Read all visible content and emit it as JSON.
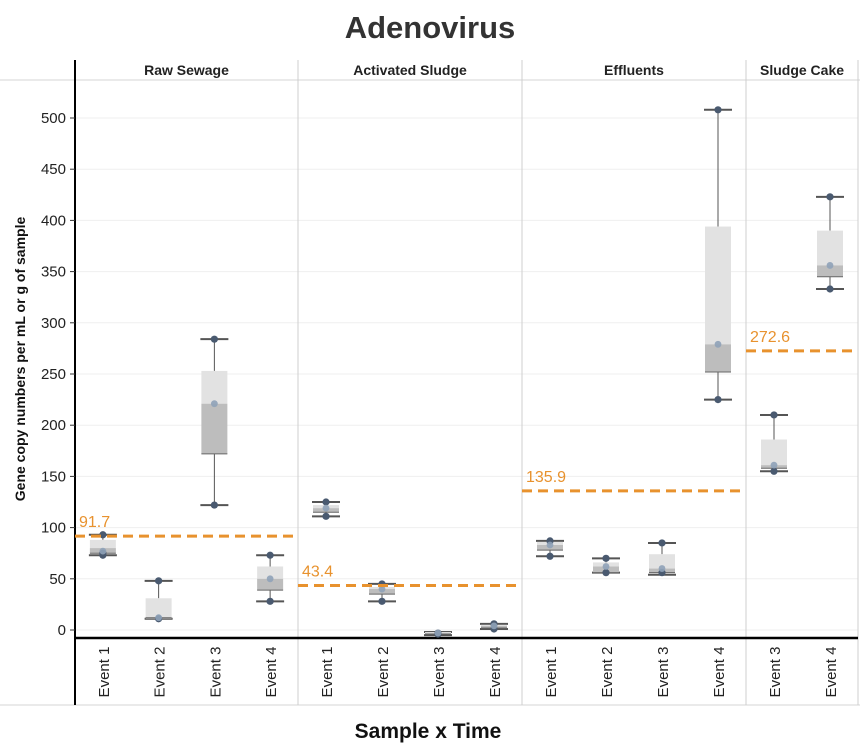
{
  "chart_data": {
    "type": "box",
    "title": "Adenovirus",
    "xlabel": "Sample x Time",
    "ylabel": "Gene copy numbers per mL or g of sample",
    "ylim": [
      -10,
      535
    ],
    "yticks": [
      0,
      50,
      100,
      150,
      200,
      250,
      300,
      350,
      400,
      450,
      500
    ],
    "grid": true,
    "colors": {
      "box_upper": "#e2e2e2",
      "box_lower": "#bdbdbd",
      "whisker": "#555555",
      "point": "#4a5a70",
      "mean_point": "#8fa2b8",
      "reference_line": "#e8922e"
    },
    "panels": [
      {
        "name": "Raw Sewage",
        "reference_value": 91.7,
        "reference_label": "91.7",
        "events": [
          {
            "label": "Event 1",
            "min": 73,
            "q1": 75,
            "median": 80,
            "q3": 88,
            "max": 93,
            "points": [
              73,
              75,
              93
            ],
            "mean": 77
          },
          {
            "label": "Event 2",
            "min": 11,
            "q1": 12,
            "median": 12,
            "q3": 31,
            "max": 48,
            "points": [
              11,
              48
            ],
            "mean": 12
          },
          {
            "label": "Event 3",
            "min": 122,
            "q1": 172,
            "median": 221,
            "q3": 253,
            "max": 284,
            "points": [
              122,
              284
            ],
            "mean": 221
          },
          {
            "label": "Event 4",
            "min": 28,
            "q1": 39,
            "median": 50,
            "q3": 62,
            "max": 73,
            "points": [
              28,
              73
            ],
            "mean": 50
          }
        ]
      },
      {
        "name": "Activated Sludge",
        "reference_value": 43.4,
        "reference_label": "43.4",
        "events": [
          {
            "label": "Event 1",
            "min": 111,
            "q1": 115,
            "median": 119,
            "q3": 122,
            "max": 125,
            "points": [
              111,
              125
            ],
            "mean": 119
          },
          {
            "label": "Event 2",
            "min": 28,
            "q1": 35,
            "median": 40,
            "q3": 42,
            "max": 45,
            "points": [
              28,
              45
            ],
            "mean": 40
          },
          {
            "label": "Event 3",
            "min": -5,
            "q1": -4,
            "median": -3,
            "q3": -2,
            "max": -2,
            "points": [
              -4,
              -3
            ],
            "mean": -3
          },
          {
            "label": "Event 4",
            "min": 1,
            "q1": 2,
            "median": 4,
            "q3": 5,
            "max": 6,
            "points": [
              1,
              6
            ],
            "mean": 4
          }
        ]
      },
      {
        "name": "Effluents",
        "reference_value": 135.9,
        "reference_label": "135.9",
        "events": [
          {
            "label": "Event 1",
            "min": 72,
            "q1": 78,
            "median": 83,
            "q3": 86,
            "max": 87,
            "points": [
              72,
              87
            ],
            "mean": 83
          },
          {
            "label": "Event 2",
            "min": 56,
            "q1": 56,
            "median": 62,
            "q3": 66,
            "max": 70,
            "points": [
              56,
              70
            ],
            "mean": 62
          },
          {
            "label": "Event 3",
            "min": 54,
            "q1": 56,
            "median": 60,
            "q3": 74,
            "max": 85,
            "points": [
              56,
              85
            ],
            "mean": 60
          },
          {
            "label": "Event 4",
            "min": 225,
            "q1": 252,
            "median": 279,
            "q3": 394,
            "max": 508,
            "points": [
              225,
              508
            ],
            "mean": 279
          }
        ]
      },
      {
        "name": "Sludge Cake",
        "reference_value": 272.6,
        "reference_label": "272.6",
        "events": [
          {
            "label": "Event 3",
            "min": 155,
            "q1": 158,
            "median": 161,
            "q3": 186,
            "max": 210,
            "points": [
              155,
              210
            ],
            "mean": 161
          },
          {
            "label": "Event 4",
            "min": 333,
            "q1": 345,
            "median": 356,
            "q3": 390,
            "max": 423,
            "points": [
              333,
              423
            ],
            "mean": 356
          }
        ]
      }
    ]
  }
}
